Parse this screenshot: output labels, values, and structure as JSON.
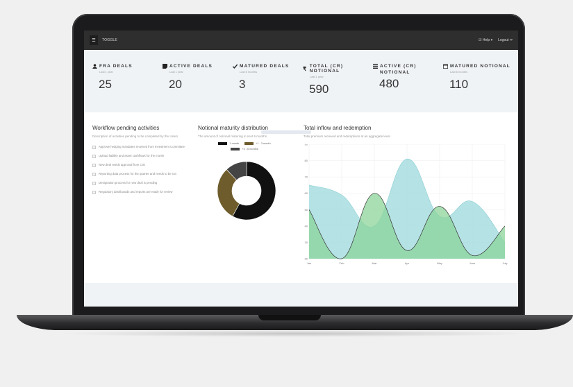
{
  "topbar": {
    "toggle_label": "TOGGLE",
    "help_label": "Help",
    "logout_label": "Logout"
  },
  "stats": [
    {
      "title": "FRA DEALS",
      "subtitle": "Last 1 year",
      "value": "25",
      "icon": "user-icon"
    },
    {
      "title": "ACTIVE DEALS",
      "subtitle": "Last 1 year",
      "value": "20",
      "icon": "note-icon"
    },
    {
      "title": "MATURED DEALS",
      "subtitle": "Last 6 months",
      "value": "3",
      "icon": "check-icon"
    },
    {
      "title": "TOTAL (CR) NOTIONAL",
      "subtitle": "Last 1 year",
      "value": "590",
      "icon": "rupee-icon"
    },
    {
      "title": "ACTIVE (CR)",
      "title2": "NOTIONAL",
      "subtitle": "",
      "value": "480",
      "icon": "list-icon"
    },
    {
      "title": "MATURED NOTIONAL",
      "subtitle": "Last 6 months",
      "value": "110",
      "icon": "calendar-icon"
    }
  ],
  "workflow": {
    "title": "Workflow pending activities",
    "description": "Description of activities pending to be completed by the Users",
    "tasks": [
      "Approve hedging mandates received from Investment Committee",
      "Upload liability and asset cashflows for the month",
      "New deal needs approval from CIO",
      "Reporting data process for the quarter and needs to be run",
      "Designation process for new deal is pending",
      "Regulatory dashboards and reports are ready for review"
    ]
  },
  "maturity": {
    "title": "Notional maturity distribution",
    "description": "The amount of notional maturing in next 6 months",
    "legend": [
      "1 month",
      "+1 - 3 month",
      "+3 - 6 months"
    ]
  },
  "inflow": {
    "title": "Total inflow and redemption",
    "description": "Total premium received and redemptions at an aggregate level"
  },
  "colors": {
    "dark": "#111111",
    "olive": "#6e5c2c",
    "gray": "#444444",
    "teal": "#a8dde0",
    "green": "#8cd49a"
  },
  "chart_data": [
    {
      "type": "pie",
      "categories": [
        "1 month",
        "+1 - 3 month",
        "+3 - 6 months"
      ],
      "values": [
        58,
        30,
        12
      ]
    },
    {
      "type": "area",
      "categories": [
        "Jan",
        "Feb",
        "Mar",
        "Apr",
        "May",
        "June",
        "July"
      ],
      "ylim": [
        20,
        90
      ],
      "yticks": [
        20,
        30,
        40,
        50,
        60,
        70,
        80,
        90
      ],
      "series": [
        {
          "values": [
            65,
            59,
            40,
            81,
            46,
            55,
            30
          ]
        },
        {
          "values": [
            50,
            20,
            60,
            25,
            52,
            22,
            40
          ]
        }
      ]
    }
  ]
}
